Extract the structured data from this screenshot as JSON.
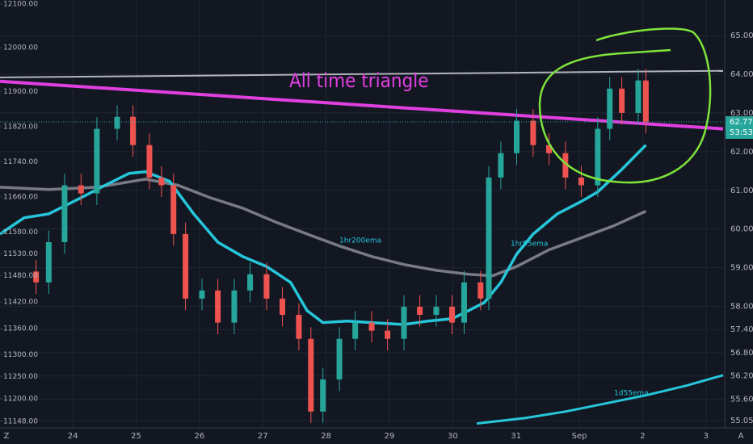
{
  "chart_data": {
    "type": "candlestick",
    "annotation": "All time triangle",
    "x": [
      23.42,
      23.62,
      23.87,
      24.13,
      24.38,
      24.7,
      24.95,
      25.21,
      25.4,
      25.59,
      25.78,
      26.04,
      26.29,
      26.55,
      26.8,
      27.06,
      27.31,
      27.57,
      27.76,
      27.95,
      28.21,
      28.46,
      28.72,
      28.97,
      29.23,
      29.48,
      29.74,
      29.99,
      30.18,
      30.44,
      30.57,
      30.76,
      31.01,
      31.27,
      31.52,
      31.78,
      32.03,
      32.29,
      32.48,
      32.67,
      32.93,
      33.05
    ],
    "open": [
      58.9,
      58.62,
      59.66,
      61.13,
      60.92,
      62.59,
      62.9,
      62.17,
      61.33,
      61.13,
      59.87,
      58.2,
      58.41,
      57.58,
      58.41,
      58.83,
      58.2,
      57.78,
      57.16,
      55.28,
      56.11,
      57.16,
      57.58,
      57.37,
      57.16,
      57.99,
      57.78,
      57.99,
      57.58,
      58.62,
      58.2,
      61.33,
      61.96,
      62.8,
      62.17,
      61.96,
      61.33,
      61.13,
      62.59,
      63.63,
      63.0,
      63.84
    ],
    "high": [
      59.2,
      59.96,
      61.43,
      61.43,
      62.89,
      63.2,
      63.2,
      62.47,
      61.63,
      61.43,
      60.17,
      58.71,
      58.71,
      58.71,
      59.13,
      59.13,
      58.5,
      58.08,
      57.46,
      56.41,
      57.46,
      57.88,
      57.88,
      57.67,
      58.29,
      58.29,
      58.29,
      58.29,
      58.92,
      58.92,
      61.63,
      62.26,
      63.1,
      63.1,
      62.47,
      62.26,
      61.63,
      62.89,
      63.93,
      63.93,
      64.14,
      64.14
    ],
    "low": [
      58.32,
      58.32,
      59.36,
      60.62,
      60.62,
      62.29,
      61.87,
      61.03,
      60.83,
      59.57,
      57.9,
      57.9,
      57.28,
      57.28,
      58.11,
      57.9,
      57.48,
      56.86,
      54.98,
      54.98,
      55.81,
      56.86,
      57.07,
      56.86,
      56.86,
      57.48,
      57.48,
      57.28,
      57.28,
      57.9,
      57.9,
      61.03,
      61.66,
      61.87,
      61.66,
      61.03,
      60.83,
      60.83,
      62.29,
      62.7,
      62.7,
      62.47
    ],
    "close": [
      58.62,
      59.66,
      61.13,
      60.92,
      62.59,
      62.9,
      62.17,
      61.33,
      61.13,
      59.87,
      58.2,
      58.41,
      57.58,
      58.41,
      58.83,
      58.2,
      57.78,
      57.16,
      55.28,
      56.11,
      57.16,
      57.58,
      57.37,
      57.16,
      57.99,
      57.78,
      57.99,
      57.58,
      58.62,
      58.2,
      61.33,
      61.96,
      62.8,
      62.17,
      61.96,
      61.33,
      61.13,
      62.59,
      63.63,
      63.0,
      63.84,
      62.77
    ],
    "up_color": "#26a69a",
    "down_color": "#ef5350",
    "axis": "y2",
    "series": [
      {
        "name": "1hr200ema",
        "color": "#787b86",
        "axis": "y2",
        "x": [
          22.85,
          23.62,
          24.38,
          25.15,
          25.66,
          26.17,
          26.68,
          27.19,
          27.7,
          28.21,
          28.72,
          29.23,
          29.74,
          30.25,
          30.63,
          31.01,
          31.52,
          32.03,
          32.54,
          33.05
        ],
        "values": [
          61.08,
          61.02,
          61.08,
          61.29,
          61.13,
          60.81,
          60.54,
          60.19,
          59.87,
          59.56,
          59.29,
          59.08,
          58.93,
          58.83,
          58.79,
          59.03,
          59.46,
          59.77,
          60.08,
          60.46
        ]
      },
      {
        "name": "1hr55ema",
        "color": "#26c6da",
        "axis": "y2",
        "x": [
          22.85,
          23.23,
          23.62,
          24.13,
          24.51,
          24.89,
          25.15,
          25.53,
          25.91,
          26.29,
          26.68,
          27.06,
          27.44,
          27.7,
          27.95,
          28.33,
          28.72,
          29.23,
          29.61,
          29.99,
          30.25,
          30.5,
          30.76,
          31.01,
          31.27,
          31.65,
          32.03,
          32.29,
          32.67,
          33.05
        ],
        "values": [
          59.87,
          60.29,
          60.39,
          60.81,
          61.13,
          61.44,
          61.48,
          61.23,
          60.39,
          59.66,
          59.29,
          59.03,
          58.62,
          57.89,
          57.58,
          57.62,
          57.58,
          57.53,
          57.62,
          57.68,
          57.89,
          58.1,
          58.62,
          59.35,
          59.87,
          60.39,
          60.71,
          60.96,
          61.54,
          62.17
        ]
      },
      {
        "name": "1d55ema",
        "color": "#26c6da",
        "axis": "y2",
        "x": [
          30.38,
          31.14,
          31.78,
          32.42,
          33.05,
          33.69,
          34.27
        ],
        "values": [
          54.97,
          55.11,
          55.28,
          55.49,
          55.7,
          55.95,
          56.22
        ]
      }
    ],
    "trend_lines": [
      {
        "color": "#b2b5be",
        "x": [
          22.85,
          34.27
        ],
        "values": [
          63.92,
          64.09
        ]
      },
      {
        "color": "#e040e0",
        "x": [
          22.85,
          34.27
        ],
        "values": [
          63.82,
          62.59
        ]
      }
    ],
    "last_price": 62.77,
    "countdown": "53:53",
    "xlim": [
      22.85,
      34.27
    ],
    "xticks": [
      24,
      25,
      26,
      27,
      28,
      29,
      30,
      31,
      {
        "value": 32,
        "label": "Sep"
      },
      {
        "value": 33,
        "label": "2"
      },
      {
        "value": 34,
        "label": "3"
      }
    ],
    "ylim": [
      11137,
      12107
    ],
    "yticks": [
      {
        "value": 12100,
        "label": "12100.00"
      },
      {
        "value": 12000,
        "label": "12000.00"
      },
      {
        "value": 11900,
        "label": "11900.00"
      },
      {
        "value": 11820,
        "label": "11820.00"
      },
      {
        "value": 11740,
        "label": "11740.00"
      },
      {
        "value": 11660,
        "label": "11660.00"
      },
      {
        "value": 11580,
        "label": "11580.00"
      },
      {
        "value": 11530,
        "label": "11530.00"
      },
      {
        "value": 11480,
        "label": "11480.00"
      },
      {
        "value": 11420,
        "label": "11420.00"
      },
      {
        "value": 11360,
        "label": "11360.00"
      },
      {
        "value": 11300,
        "label": "11300.00"
      },
      {
        "value": 11250,
        "label": "11250.00"
      },
      {
        "value": 11200,
        "label": "11200.00"
      },
      {
        "value": 11148,
        "label": "11148.00"
      }
    ],
    "y2lim": [
      54.9,
      65.9
    ],
    "y2ticks": [
      {
        "value": 65,
        "label": "65.00"
      },
      {
        "value": 64,
        "label": "64.00"
      },
      {
        "value": 63,
        "label": "63.00"
      },
      {
        "value": 62,
        "label": "62.00"
      },
      {
        "value": 61,
        "label": "61.00"
      },
      {
        "value": 60,
        "label": "60.00"
      },
      {
        "value": 59,
        "label": "59.00"
      },
      {
        "value": 58,
        "label": "58.00"
      },
      {
        "value": 57.4,
        "label": "57.40"
      },
      {
        "value": 56.8,
        "label": "56.80"
      },
      {
        "value": 56.2,
        "label": "56.20"
      },
      {
        "value": 55.6,
        "label": "55.60"
      },
      {
        "value": 55.05,
        "label": "55.05"
      }
    ],
    "grid": true,
    "buttons": {
      "left": "Z",
      "right": "A"
    }
  }
}
